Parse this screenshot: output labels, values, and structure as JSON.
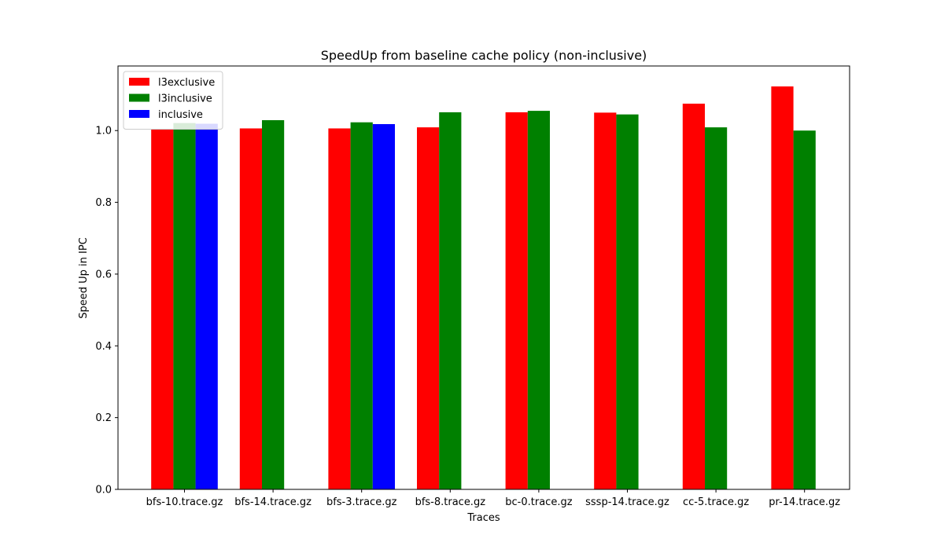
{
  "chart_data": {
    "type": "bar",
    "title": "SpeedUp from baseline cache policy (non-inclusive)",
    "xlabel": "Traces",
    "ylabel": "Speed Up in IPC",
    "categories": [
      "bfs-10.trace.gz",
      "bfs-14.trace.gz",
      "bfs-3.trace.gz",
      "bfs-8.trace.gz",
      "bc-0.trace.gz",
      "sssp-14.trace.gz",
      "cc-5.trace.gz",
      "pr-14.trace.gz"
    ],
    "series": [
      {
        "name": "l3exclusive",
        "color": "#ff0000",
        "values": [
          1.004,
          1.006,
          1.006,
          1.009,
          1.051,
          1.05,
          1.075,
          1.123
        ]
      },
      {
        "name": "l3inclusive",
        "color": "#008000",
        "values": [
          1.021,
          1.029,
          1.023,
          1.051,
          1.055,
          1.045,
          1.009,
          1.0
        ]
      },
      {
        "name": "inclusive",
        "color": "#0000ff",
        "values": [
          1.019,
          null,
          1.018,
          null,
          null,
          null,
          null,
          null
        ]
      }
    ],
    "ylim": [
      0,
      1.18
    ],
    "yticks": [
      0.0,
      0.2,
      0.4,
      0.6,
      0.8,
      1.0
    ],
    "ytick_labels": [
      "0.0",
      "0.2",
      "0.4",
      "0.6",
      "0.8",
      "1.0"
    ],
    "grid": false,
    "legend_position": "upper-left"
  }
}
